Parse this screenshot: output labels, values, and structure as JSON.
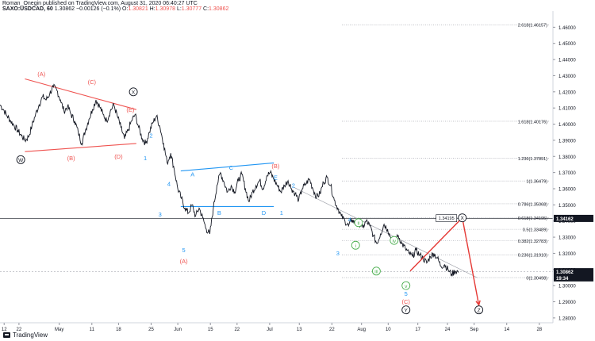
{
  "header": {
    "author_line": "Roman_Onegin published on TradingView.com, August 31, 2020 06:40:27 UTC",
    "symbol": "SAXO:USDCAD, 60",
    "last": "1.30862",
    "change": "−0.00126 (−0.1%)",
    "o_label": "O:",
    "o": "1.30821",
    "h_label": "H:",
    "h": "1.30978",
    "l_label": "L:",
    "l": "1.30777",
    "c_label": "C:",
    "c": "1.30862"
  },
  "footer": {
    "brand": "TradingView"
  },
  "colors": {
    "price": "#131722",
    "red": "#ef5350",
    "blue": "#2196f3",
    "green": "#4caf50",
    "grid_line": "#9598a1",
    "dark": "#131722"
  },
  "chart_data": {
    "type": "line",
    "title": "SAXO:USDCAD, 60",
    "ylim": [
      1.277,
      1.47
    ],
    "y_ticks": [
      1.46,
      1.45,
      1.44,
      1.43,
      1.42,
      1.41,
      1.4,
      1.39,
      1.38,
      1.37,
      1.36,
      1.35,
      1.34,
      1.33,
      1.32,
      1.31,
      1.3,
      1.29,
      1.28
    ],
    "x_ticks": [
      "12",
      "22",
      "May",
      "11",
      "18",
      "25",
      "Jun",
      "15",
      "22",
      "Jul",
      "13",
      "22",
      "Aug",
      "10",
      "17",
      "24",
      "Sep",
      "14",
      "28"
    ],
    "x_tick_time": [
      0.07,
      0.32,
      1.0,
      1.55,
      2.0,
      2.55,
      3.0,
      3.55,
      4.0,
      4.55,
      5.05,
      5.6,
      6.1,
      6.55,
      7.05,
      7.55,
      8.0,
      8.55,
      9.1
    ],
    "price_series": {
      "name": "USDCAD",
      "x": [
        0.0,
        0.06,
        0.12,
        0.18,
        0.24,
        0.3,
        0.36,
        0.42,
        0.48,
        0.54,
        0.6,
        0.66,
        0.72,
        0.78,
        0.84,
        0.9,
        0.96,
        1.02,
        1.08,
        1.14,
        1.2,
        1.26,
        1.32,
        1.38,
        1.44,
        1.5,
        1.56,
        1.62,
        1.68,
        1.74,
        1.8,
        1.86,
        1.92,
        1.98,
        2.04,
        2.1,
        2.16,
        2.22,
        2.28,
        2.34,
        2.4,
        2.46,
        2.52,
        2.58,
        2.64,
        2.7,
        2.76,
        2.82,
        2.88,
        2.94,
        3.0,
        3.06,
        3.12,
        3.18,
        3.24,
        3.3,
        3.36,
        3.42,
        3.48,
        3.54,
        3.6,
        3.66,
        3.72,
        3.78,
        3.84,
        3.9,
        3.96,
        4.02,
        4.08,
        4.14,
        4.2,
        4.26,
        4.32,
        4.38,
        4.44,
        4.5,
        4.56,
        4.62,
        4.68,
        4.74,
        4.8,
        4.86,
        4.92,
        4.98,
        5.04,
        5.1,
        5.16,
        5.22,
        5.28,
        5.34,
        5.4,
        5.46,
        5.52,
        5.58,
        5.64,
        5.7,
        5.76,
        5.82,
        5.88,
        5.94,
        6.0,
        6.06,
        6.12,
        6.18,
        6.24,
        6.3,
        6.36,
        6.42,
        6.48,
        6.54,
        6.6,
        6.66,
        6.72,
        6.78,
        6.84,
        6.9,
        6.96,
        7.02,
        7.08,
        7.14,
        7.2,
        7.26,
        7.32,
        7.38,
        7.44,
        7.5,
        7.56,
        7.62,
        7.68,
        7.74
      ],
      "y": [
        1.412,
        1.409,
        1.405,
        1.402,
        1.399,
        1.396,
        1.393,
        1.39,
        1.392,
        1.399,
        1.406,
        1.412,
        1.417,
        1.415,
        1.419,
        1.423,
        1.421,
        1.415,
        1.408,
        1.411,
        1.406,
        1.402,
        1.395,
        1.388,
        1.396,
        1.403,
        1.409,
        1.415,
        1.411,
        1.406,
        1.402,
        1.408,
        1.412,
        1.405,
        1.398,
        1.391,
        1.396,
        1.402,
        1.406,
        1.398,
        1.391,
        1.388,
        1.395,
        1.401,
        1.405,
        1.398,
        1.388,
        1.376,
        1.382,
        1.372,
        1.36,
        1.354,
        1.348,
        1.345,
        1.35,
        1.343,
        1.348,
        1.342,
        1.335,
        1.332,
        1.348,
        1.362,
        1.37,
        1.364,
        1.358,
        1.362,
        1.358,
        1.365,
        1.369,
        1.36,
        1.352,
        1.358,
        1.362,
        1.365,
        1.36,
        1.368,
        1.37,
        1.366,
        1.362,
        1.358,
        1.362,
        1.365,
        1.36,
        1.357,
        1.353,
        1.36,
        1.363,
        1.366,
        1.36,
        1.355,
        1.357,
        1.364,
        1.367,
        1.362,
        1.353,
        1.348,
        1.343,
        1.34,
        1.337,
        1.341,
        1.338,
        1.339,
        1.336,
        1.34,
        1.337,
        1.331,
        1.326,
        1.332,
        1.338,
        1.335,
        1.329,
        1.327,
        1.331,
        1.326,
        1.323,
        1.32,
        1.318,
        1.322,
        1.319,
        1.317,
        1.314,
        1.318,
        1.32,
        1.317,
        1.312,
        1.313,
        1.31,
        1.307,
        1.309,
        1.3086
      ]
    },
    "fib_levels": [
      {
        "label": "2.618(1.46157)",
        "y": 1.46157
      },
      {
        "label": "1.618(1.40176)",
        "y": 1.40176
      },
      {
        "label": "1.236(1.37891)",
        "y": 1.37891
      },
      {
        "label": "1(1.36479)",
        "y": 1.36479
      },
      {
        "label": "0.786(1.35068)",
        "y": 1.35068
      },
      {
        "label": "0.618(1.34195)",
        "y": 1.34195
      },
      {
        "label": "0.5(1.33489)",
        "y": 1.33489
      },
      {
        "label": "0.382(1.32783)",
        "y": 1.32783
      },
      {
        "label": "0.236(1.31910)",
        "y": 1.3191
      },
      {
        "label": "0(1.30498)",
        "y": 1.30498
      }
    ],
    "price_labels": [
      {
        "text": "1.34162",
        "y": 1.34162,
        "bg": "#131722",
        "fg": "#ffffff"
      },
      {
        "text": "1.30862",
        "y": 1.30862,
        "bg": "#131722",
        "fg": "#ffffff"
      },
      {
        "text": "19:34",
        "y": 1.3048,
        "bg": "#131722",
        "fg": "#ffffff"
      }
    ],
    "target_label": "1.34195",
    "wave_labels": [
      {
        "text": "(A)",
        "x": 0.7,
        "y": 1.431,
        "color": "red"
      },
      {
        "text": "(B)",
        "x": 1.2,
        "y": 1.379,
        "color": "red"
      },
      {
        "text": "(C)",
        "x": 1.55,
        "y": 1.426,
        "color": "red"
      },
      {
        "text": "(D)",
        "x": 2.0,
        "y": 1.38,
        "color": "red"
      },
      {
        "text": "(E)",
        "x": 2.2,
        "y": 1.409,
        "color": "red"
      },
      {
        "text": "W",
        "x": 0.35,
        "y": 1.378,
        "color": "dark",
        "circle": true
      },
      {
        "text": "X",
        "x": 2.25,
        "y": 1.42,
        "color": "dark",
        "circle": true
      },
      {
        "text": "1",
        "x": 2.45,
        "y": 1.379,
        "color": "blue"
      },
      {
        "text": "2",
        "x": 2.55,
        "y": 1.393,
        "color": "blue"
      },
      {
        "text": "3",
        "x": 2.7,
        "y": 1.344,
        "color": "blue"
      },
      {
        "text": "4",
        "x": 2.85,
        "y": 1.363,
        "color": "blue"
      },
      {
        "text": "5",
        "x": 3.1,
        "y": 1.322,
        "color": "blue"
      },
      {
        "text": "(A)",
        "x": 3.1,
        "y": 1.315,
        "color": "red"
      },
      {
        "text": "A",
        "x": 3.25,
        "y": 1.369,
        "color": "blue"
      },
      {
        "text": "B",
        "x": 3.7,
        "y": 1.345,
        "color": "blue"
      },
      {
        "text": "C",
        "x": 3.9,
        "y": 1.373,
        "color": "blue"
      },
      {
        "text": "D",
        "x": 4.45,
        "y": 1.345,
        "color": "blue"
      },
      {
        "text": "(B)",
        "x": 4.65,
        "y": 1.374,
        "color": "red"
      },
      {
        "text": "E",
        "x": 4.65,
        "y": 1.367,
        "color": "blue"
      },
      {
        "text": "1",
        "x": 4.75,
        "y": 1.345,
        "color": "blue"
      },
      {
        "text": "2",
        "x": 4.95,
        "y": 1.362,
        "color": "blue"
      },
      {
        "text": "3",
        "x": 5.7,
        "y": 1.32,
        "color": "blue"
      },
      {
        "text": "4",
        "x": 5.9,
        "y": 1.341,
        "color": "blue"
      },
      {
        "text": "i",
        "x": 6.0,
        "y": 1.325,
        "color": "green",
        "circle": true
      },
      {
        "text": "ii",
        "x": 6.05,
        "y": 1.339,
        "color": "green",
        "circle": true
      },
      {
        "text": "iii",
        "x": 6.35,
        "y": 1.309,
        "color": "green",
        "circle": true
      },
      {
        "text": "iv",
        "x": 6.65,
        "y": 1.328,
        "color": "green",
        "circle": true
      },
      {
        "text": "v",
        "x": 6.85,
        "y": 1.3,
        "color": "green",
        "circle": true
      },
      {
        "text": "5",
        "x": 6.85,
        "y": 1.295,
        "color": "blue"
      },
      {
        "text": "(C)",
        "x": 6.85,
        "y": 1.29,
        "color": "red"
      },
      {
        "text": "Y",
        "x": 6.85,
        "y": 1.285,
        "color": "dark",
        "circle": true
      },
      {
        "text": "X",
        "x": 7.8,
        "y": 1.342,
        "color": "dark",
        "circle": true
      },
      {
        "text": "Z",
        "x": 8.08,
        "y": 1.285,
        "color": "dark",
        "circle": true
      }
    ],
    "trendlines": [
      {
        "x1": 0.42,
        "y1": 1.428,
        "x2": 2.3,
        "y2": 1.409,
        "color": "red"
      },
      {
        "x1": 0.42,
        "y1": 1.383,
        "x2": 2.3,
        "y2": 1.388,
        "color": "red"
      },
      {
        "x1": 3.05,
        "y1": 1.371,
        "x2": 4.62,
        "y2": 1.376,
        "color": "blue"
      },
      {
        "x1": 3.05,
        "y1": 1.349,
        "x2": 4.62,
        "y2": 1.349,
        "color": "blue"
      },
      {
        "x1": 4.95,
        "y1": 1.361,
        "x2": 8.05,
        "y2": 1.305,
        "color": "grey"
      }
    ],
    "projection": [
      {
        "x": 6.92,
        "y": 1.309
      },
      {
        "x": 7.8,
        "y": 1.342
      },
      {
        "x": 8.08,
        "y": 1.288
      }
    ]
  }
}
